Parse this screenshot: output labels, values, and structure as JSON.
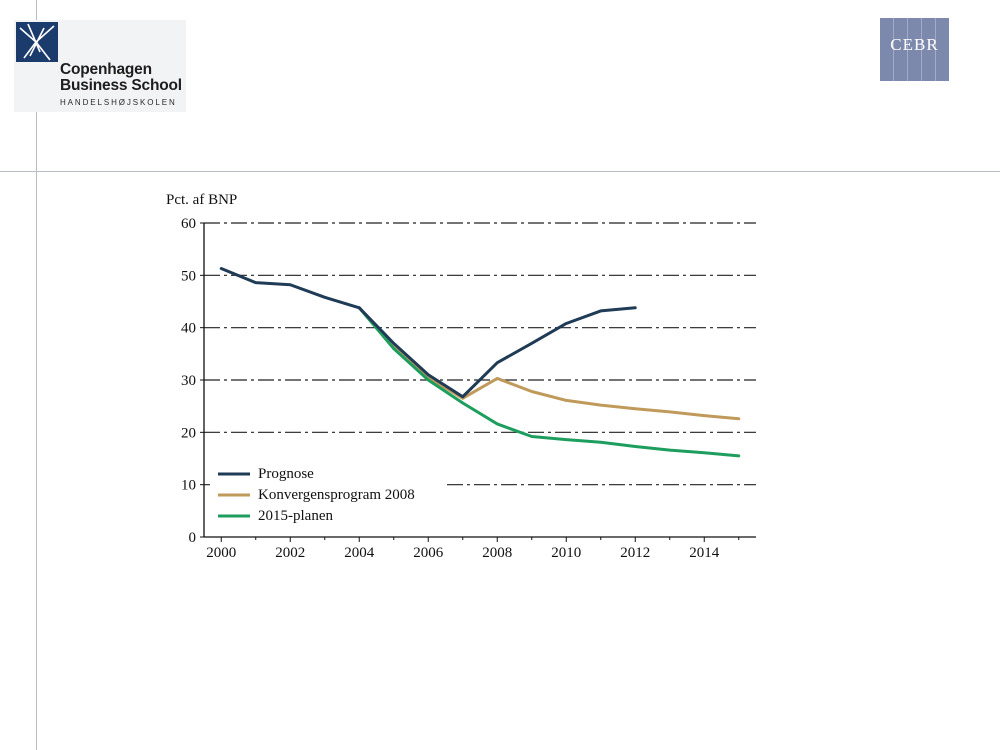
{
  "header": {
    "cbs_logo": {
      "name_line1": "Copenhagen",
      "name_line2": "Business School",
      "subtitle": "HANDELSHØJSKOLEN"
    },
    "cebr_logo": {
      "text": "CEBR"
    }
  },
  "chart_data": {
    "type": "line",
    "title": "",
    "ylabel": "Pct. af BNP",
    "xlabel": "",
    "xlim": [
      1999.5,
      2015.5
    ],
    "ylim": [
      0,
      60
    ],
    "yticks": [
      0,
      10,
      20,
      30,
      40,
      50,
      60
    ],
    "xticks": [
      2000,
      2002,
      2004,
      2006,
      2008,
      2010,
      2012,
      2014
    ],
    "grid": "horizontal dashed",
    "legend_position": "lower-left",
    "series": [
      {
        "name": "Prognose",
        "color": "#1f3b55",
        "x": [
          2000,
          2001,
          2002,
          2003,
          2004,
          2005,
          2006,
          2007,
          2008,
          2009,
          2010,
          2011,
          2012
        ],
        "y": [
          51.3,
          48.6,
          48.2,
          45.8,
          43.8,
          37,
          31,
          26.8,
          33.3,
          37,
          40.8,
          43.2,
          43.8
        ]
      },
      {
        "name": "Konvergensprogram 2008",
        "color": "#c09a5b",
        "x": [
          2004,
          2005,
          2006,
          2007,
          2008,
          2009,
          2010,
          2011,
          2012,
          2013,
          2014,
          2015
        ],
        "y": [
          43.8,
          36.2,
          30.5,
          26.5,
          30.3,
          27.8,
          26.1,
          25.2,
          24.5,
          23.9,
          23.2,
          22.6
        ]
      },
      {
        "name": "2015-planen",
        "color": "#1e9e5e",
        "x": [
          2004,
          2005,
          2006,
          2007,
          2008,
          2009,
          2010,
          2011,
          2012,
          2013,
          2014,
          2015
        ],
        "y": [
          43.8,
          36,
          30,
          25.6,
          21.6,
          19.2,
          18.6,
          18.1,
          17.3,
          16.6,
          16.1,
          15.5
        ]
      }
    ]
  }
}
